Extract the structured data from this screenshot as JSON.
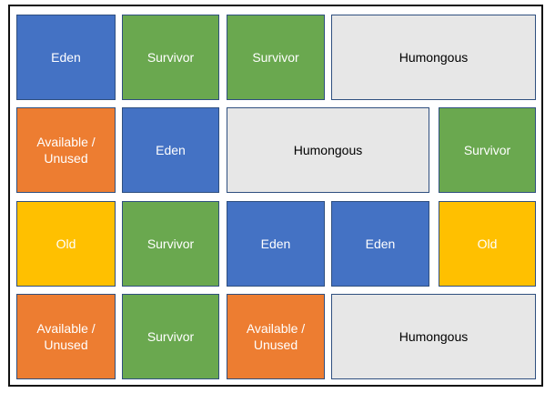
{
  "labels": {
    "eden": "Eden",
    "survivor": "Survivor",
    "humongous": "Humongous",
    "available": "Available /\nUnused",
    "old": "Old"
  },
  "colors": {
    "eden": "#4472c4",
    "survivor": "#6aa84f",
    "humongous": "#e7e7e7",
    "available": "#ed7d31",
    "old": "#ffc000"
  },
  "rows": [
    [
      "eden",
      "survivor",
      "survivor",
      "humongous"
    ],
    [
      "available",
      "eden",
      "humongous",
      "survivor"
    ],
    [
      "old",
      "survivor",
      "eden",
      "eden",
      "old"
    ],
    [
      "available",
      "survivor",
      "available",
      "humongous"
    ]
  ]
}
